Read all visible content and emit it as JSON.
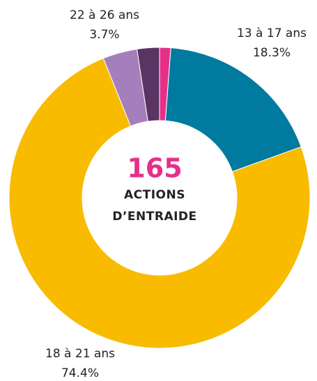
{
  "chart_data": {
    "type": "donut",
    "categories": [
      null,
      "13 à 17 ans",
      "18 à 21 ans",
      "22 à 26 ans",
      null
    ],
    "values": [
      1.2,
      18.3,
      74.4,
      3.7,
      2.4
    ],
    "value_labels": [
      null,
      "18.3%",
      "74.4%",
      "3.7%",
      null
    ],
    "colors": [
      "#e5308a",
      "#007a9e",
      "#f8bb00",
      "#a57fbb",
      "#5a3462"
    ],
    "total": 165,
    "center_lines": [
      "ACTIONS",
      "D’ENTRAIDE"
    ]
  }
}
